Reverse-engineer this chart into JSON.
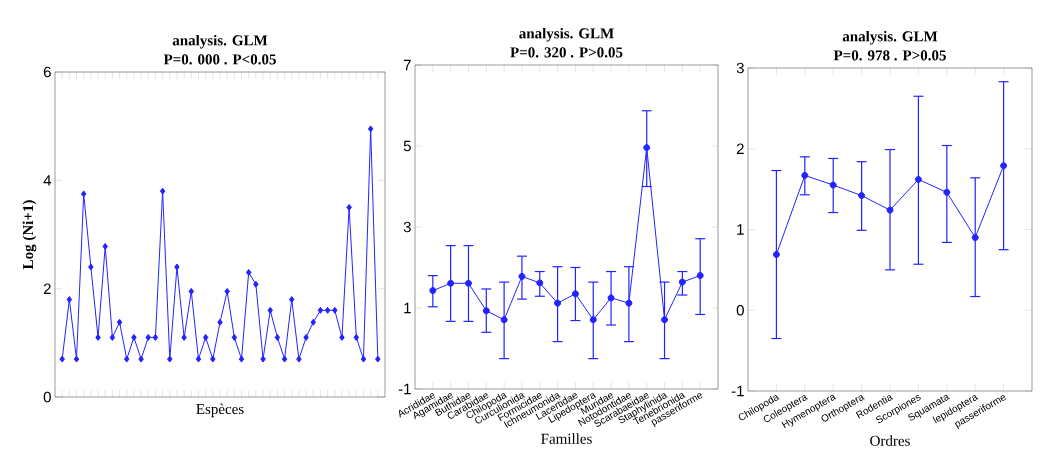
{
  "chart_data": [
    {
      "type": "line",
      "title": "analysis. GLM",
      "subtitle": "P=0. 000 .      P<0.05",
      "xlabel": "Espèces",
      "ylabel": "Log (Ni+1)",
      "color": "#2323ff",
      "marker": "diamond",
      "ylim": [
        0,
        6
      ],
      "yticks": [
        0,
        2,
        4,
        6
      ],
      "categories": [
        null,
        null,
        null,
        null,
        null,
        null,
        null,
        null,
        null,
        null,
        null,
        null,
        null,
        null,
        null,
        null,
        null,
        null,
        null,
        null,
        null,
        null,
        null,
        null,
        null,
        null,
        null,
        null,
        null,
        null,
        null,
        null,
        null,
        null,
        null,
        null,
        null,
        null,
        null,
        null,
        null,
        null,
        null,
        null,
        null
      ],
      "values": [
        0.7,
        1.8,
        0.7,
        3.75,
        2.4,
        1.1,
        2.78,
        1.1,
        1.38,
        0.7,
        1.1,
        0.7,
        1.1,
        1.1,
        3.8,
        0.7,
        2.4,
        1.1,
        1.95,
        0.7,
        1.1,
        0.7,
        1.38,
        1.95,
        1.1,
        0.7,
        2.3,
        2.08,
        0.7,
        1.6,
        1.1,
        0.7,
        1.8,
        0.7,
        1.1,
        1.38,
        1.6,
        1.6,
        1.6,
        1.1,
        3.5,
        1.1,
        0.7,
        4.95,
        0.7
      ]
    },
    {
      "type": "line",
      "title": "analysis. GLM",
      "subtitle": "P=0. 320 .      P>0.05",
      "xlabel": "Familles",
      "color": "#2323ff",
      "marker": "circle",
      "ylim": [
        -1,
        7
      ],
      "yticks": [
        -1,
        1,
        3,
        5,
        7
      ],
      "categories": [
        "Acrididae",
        "Agamidae",
        "Buthidae",
        "Carabidae",
        "Chilopoda",
        "Curculionida",
        "Formicidae",
        "Ichneumonida",
        "Lacertidae",
        "Lipedoptera",
        "Muridae",
        "Notodontidae",
        "Scarabaeidae",
        "Staphylinida",
        "Tenebrionida",
        "passeriforme"
      ],
      "values": [
        1.43,
        1.61,
        1.61,
        0.93,
        0.71,
        1.78,
        1.62,
        1.12,
        1.35,
        0.71,
        1.25,
        1.12,
        4.96,
        0.71,
        1.64,
        1.8
      ],
      "errors": [
        [
          1.03,
          1.8
        ],
        [
          0.67,
          2.54
        ],
        [
          0.67,
          2.54
        ],
        [
          0.4,
          1.47
        ],
        [
          -0.25,
          1.64
        ],
        [
          1.22,
          2.28
        ],
        [
          1.29,
          1.9
        ],
        [
          0.17,
          2.02
        ],
        [
          0.69,
          2.0
        ],
        [
          -0.25,
          1.64
        ],
        [
          0.58,
          1.9
        ],
        [
          0.17,
          2.02
        ],
        [
          4.0,
          5.87
        ],
        [
          -0.25,
          1.64
        ],
        [
          1.32,
          1.9
        ],
        [
          0.84,
          2.71
        ]
      ]
    },
    {
      "type": "line",
      "title": "analysis. GLM",
      "subtitle": "P=0. 978 .      P>0.05",
      "xlabel": "Ordres",
      "color": "#2323ff",
      "marker": "circle",
      "ylim": [
        -1,
        3
      ],
      "yticks": [
        -1,
        0,
        1,
        2,
        3
      ],
      "categories": [
        "Chilopoda",
        "Coleoptera",
        "Hymenoptera",
        "Orthoptera",
        "Rodentia",
        "Scorpiones",
        "Squamata",
        "lepidoptera",
        "passeriforme"
      ],
      "values": [
        0.69,
        1.67,
        1.55,
        1.42,
        1.24,
        1.62,
        1.46,
        0.9,
        1.79
      ],
      "errors": [
        [
          -0.35,
          1.73
        ],
        [
          1.43,
          1.9
        ],
        [
          1.21,
          1.88
        ],
        [
          0.99,
          1.84
        ],
        [
          0.5,
          1.99
        ],
        [
          0.57,
          2.65
        ],
        [
          0.84,
          2.04
        ],
        [
          0.17,
          1.64
        ],
        [
          0.75,
          2.83
        ]
      ]
    }
  ]
}
